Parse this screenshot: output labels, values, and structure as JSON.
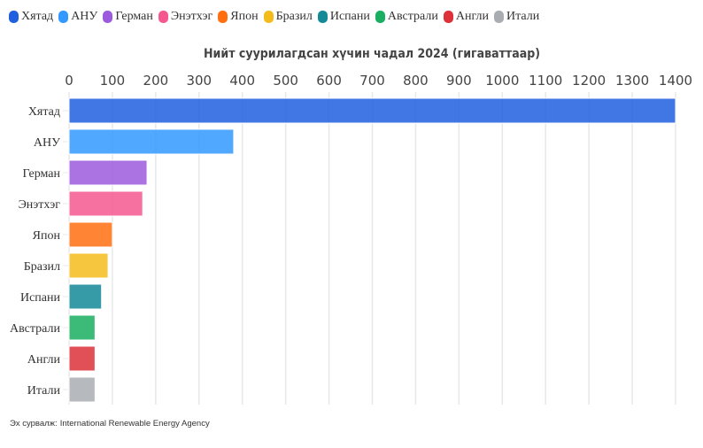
{
  "chart_data": {
    "type": "bar",
    "orientation": "horizontal",
    "title": "Нийт суурилагдсан хүчин чадал 2024 (гигаваттаар)",
    "categories": [
      "Хятад",
      "АНУ",
      "Герман",
      "Энэтхэг",
      "Япон",
      "Бразил",
      "Испани",
      "Австрали",
      "Англи",
      "Итали"
    ],
    "values": [
      1400,
      380,
      180,
      170,
      100,
      90,
      75,
      60,
      60,
      60
    ],
    "colors": [
      "#1f5fe0",
      "#3399ff",
      "#9c5bdc",
      "#f4588f",
      "#ff6f10",
      "#f3bc1c",
      "#138a96",
      "#19ae60",
      "#dc3138",
      "#a9adb1"
    ],
    "xlim": [
      0,
      1400
    ],
    "xticks": [
      0,
      100,
      200,
      300,
      400,
      500,
      600,
      700,
      800,
      900,
      1000,
      1100,
      1200,
      1300,
      1400
    ],
    "grid": true,
    "legend": "top-left"
  },
  "source": {
    "label": "Эх сурвалж:",
    "text": "International Renewable Energy Agency"
  }
}
